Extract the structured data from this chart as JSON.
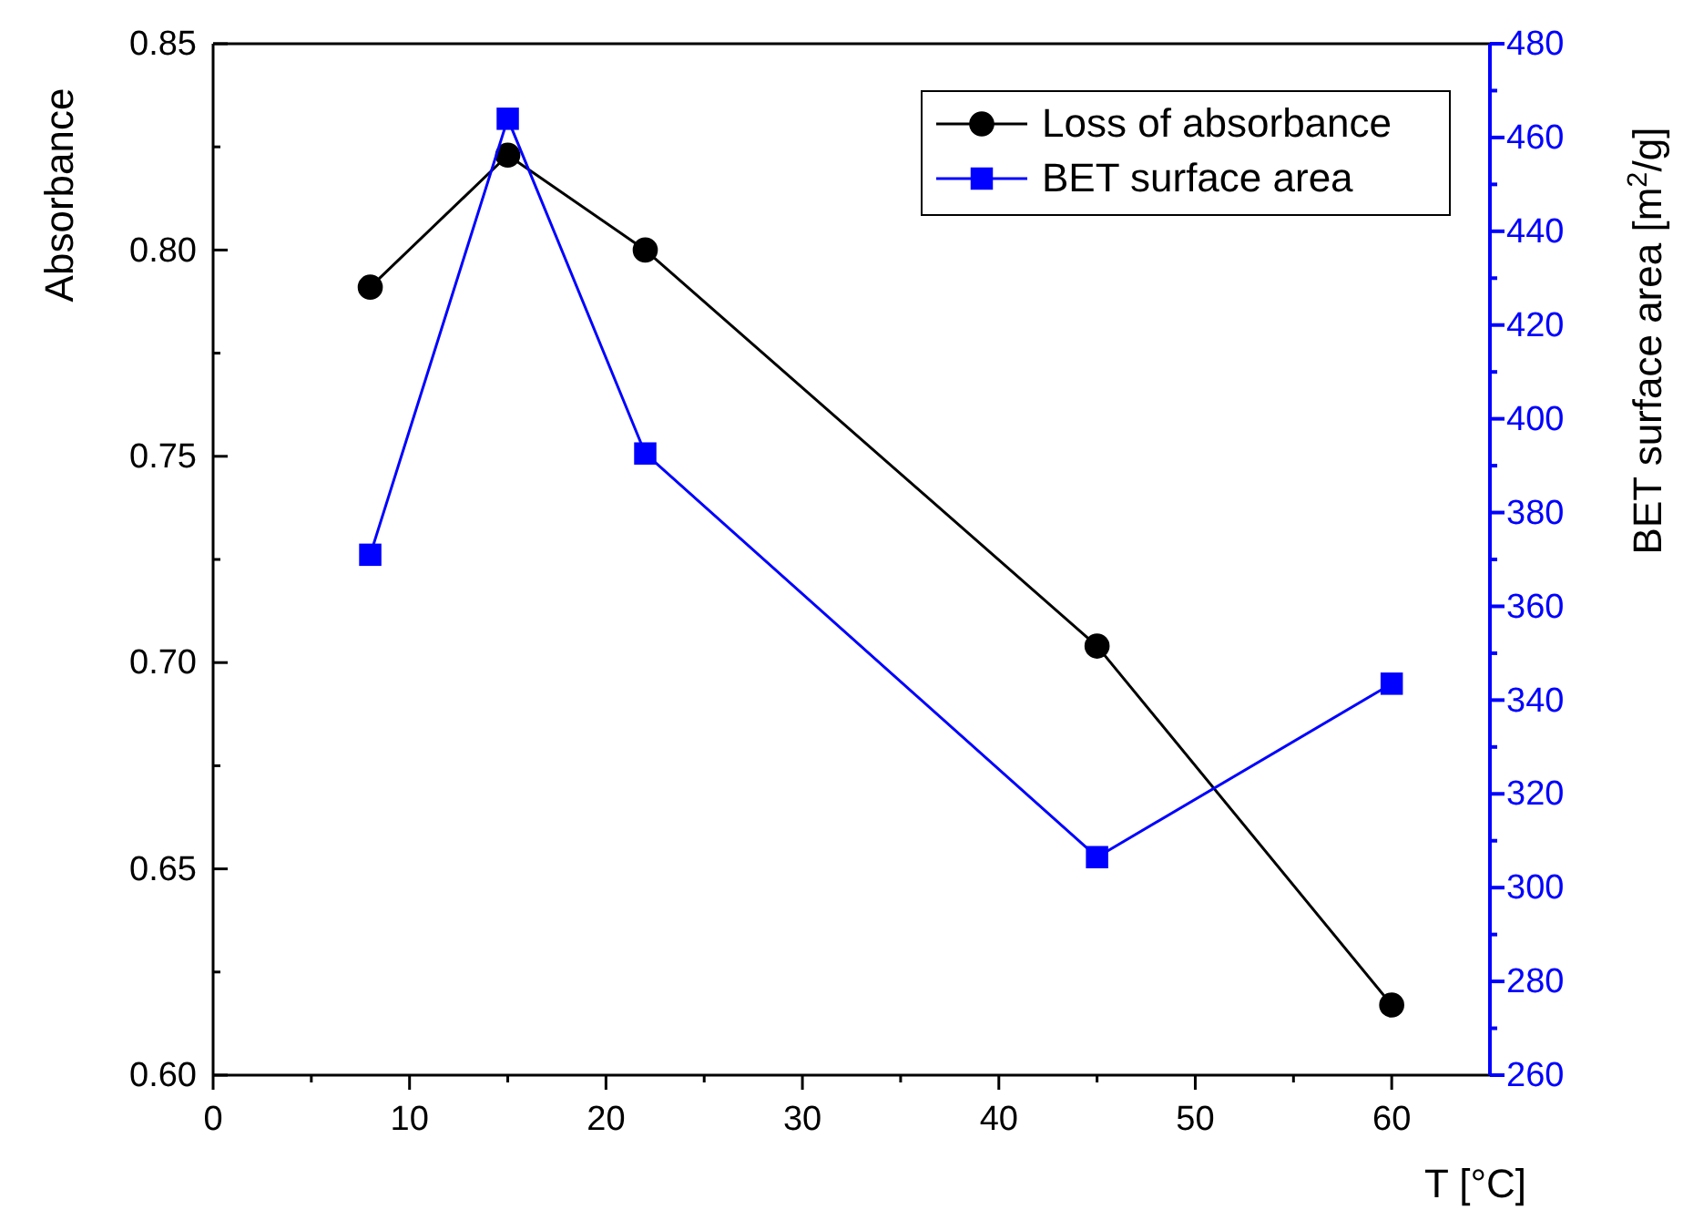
{
  "chart_data": {
    "type": "line",
    "xlabel": "T [°C]",
    "ylabel": "Absorbance",
    "y2label": "BET surface area [m$^{2}$/g]",
    "x": [
      8,
      15,
      22,
      45,
      60
    ],
    "series": [
      {
        "name": "Loss of absorbance",
        "color": "#000000",
        "marker": "circle",
        "values": [
          0.791,
          0.823,
          0.8,
          0.704,
          0.617
        ]
      },
      {
        "name": "BET surface area",
        "color": "#0000ff",
        "marker": "square",
        "axis": "y2",
        "values": [
          371,
          464,
          392.6,
          306.5,
          343.5
        ]
      }
    ],
    "xlim": [
      0,
      65
    ],
    "xticks": [
      0,
      {
        "value": 5,
        "label": null
      },
      10,
      {
        "value": 15,
        "label": null
      },
      20,
      {
        "value": 25,
        "label": null
      },
      30,
      {
        "value": 35,
        "label": null
      },
      40,
      {
        "value": 45,
        "label": null
      },
      50,
      {
        "value": 55,
        "label": null
      },
      60
    ],
    "ylim": [
      0.6,
      0.85
    ],
    "yticks": [
      {
        "value": 0.6,
        "label": "0.60"
      },
      {
        "value": 0.625,
        "label": null
      },
      {
        "value": 0.65,
        "label": "0.65"
      },
      {
        "value": 0.675,
        "label": null
      },
      {
        "value": 0.7,
        "label": "0.70"
      },
      {
        "value": 0.725,
        "label": null
      },
      {
        "value": 0.75,
        "label": "0.75"
      },
      {
        "value": 0.775,
        "label": null
      },
      {
        "value": 0.8,
        "label": "0.80"
      },
      {
        "value": 0.825,
        "label": null
      },
      {
        "value": 0.85,
        "label": "0.85"
      }
    ],
    "y2lim": [
      260,
      480
    ],
    "y2ticks": [
      260,
      {
        "value": 270,
        "label": null
      },
      280,
      {
        "value": 290,
        "label": null
      },
      300,
      {
        "value": 310,
        "label": null
      },
      320,
      {
        "value": 330,
        "label": null
      },
      340,
      {
        "value": 350,
        "label": null
      },
      360,
      {
        "value": 370,
        "label": null
      },
      380,
      {
        "value": 390,
        "label": null
      },
      400,
      {
        "value": 410,
        "label": null
      },
      420,
      {
        "value": 430,
        "label": null
      },
      440,
      {
        "value": 450,
        "label": null
      },
      460,
      {
        "value": 470,
        "label": null
      },
      480
    ],
    "grid": false,
    "legend": "top right",
    "line_style": "solid"
  }
}
